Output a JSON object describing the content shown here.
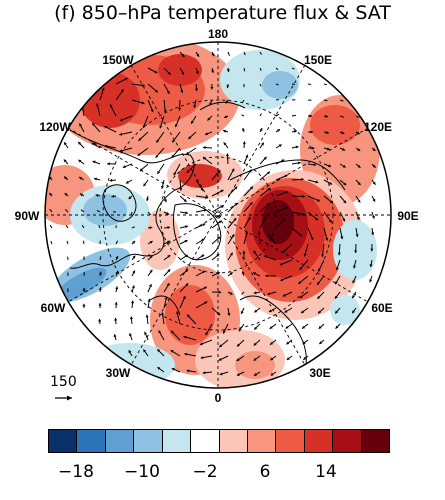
{
  "title": "(f) 850–hPa temperature flux & SAT",
  "longitude_labels": [
    "180",
    "150E",
    "120E",
    "90E",
    "60E",
    "30E",
    "0",
    "30W",
    "60W",
    "90W",
    "120W",
    "150W"
  ],
  "reference_vector_label": "150",
  "colorbar": {
    "colors": [
      "#08306b",
      "#2b74b8",
      "#5fa0d1",
      "#8ec1e2",
      "#c4e6ef",
      "#ffffff",
      "#fbc6b8",
      "#f7957f",
      "#ee5b45",
      "#d73027",
      "#a50f15",
      "#67000d"
    ],
    "tick_labels": [
      "−18",
      "−10",
      "−2",
      "6",
      "14"
    ]
  },
  "colors": {
    "land_outline": "#000000",
    "grid": "#000000"
  }
}
